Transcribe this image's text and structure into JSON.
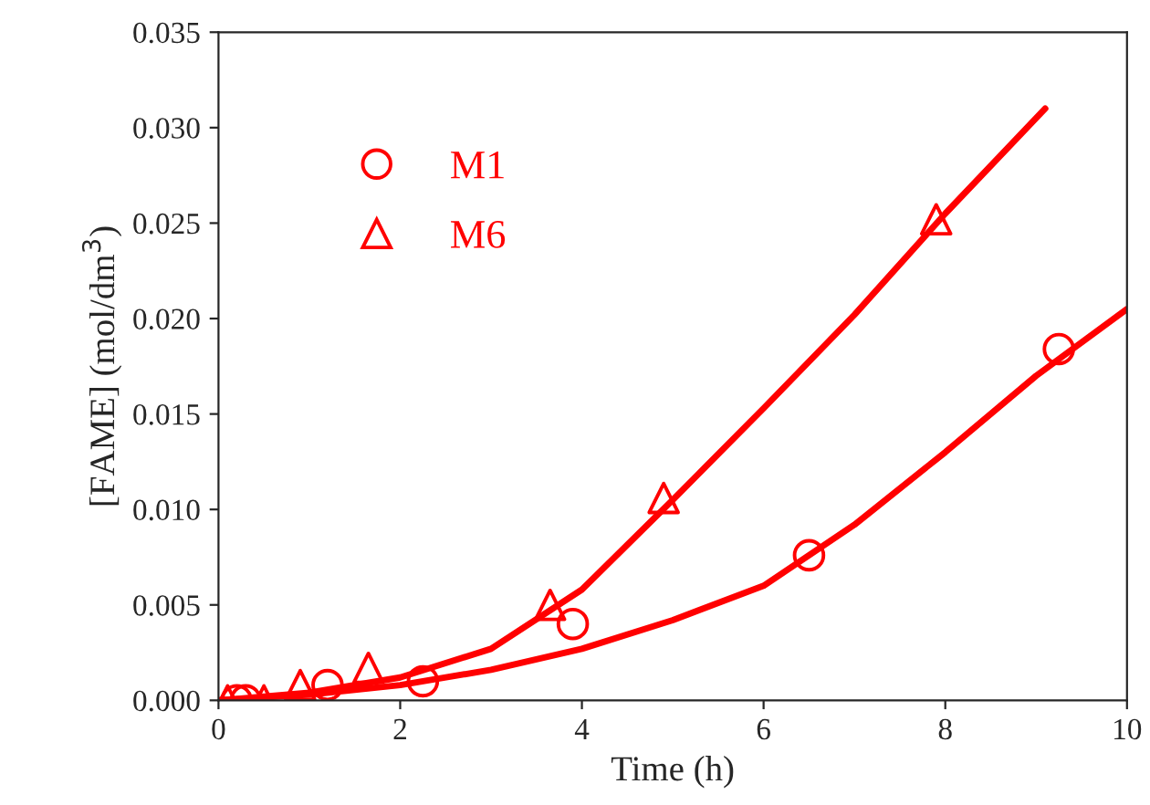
{
  "chart_data": {
    "type": "scatter",
    "xlabel": "Time (h)",
    "ylabel": "[FAME] (mol/dm$^{3}$)",
    "xlim": [
      0,
      10
    ],
    "xticks": [
      0,
      2,
      4,
      6,
      8,
      10
    ],
    "ylim": [
      0,
      0.035
    ],
    "yticks": [
      {
        "value": 0,
        "label": "0.000"
      },
      {
        "value": 0.005,
        "label": "0.005"
      },
      {
        "value": 0.01,
        "label": "0.010"
      },
      {
        "value": 0.015,
        "label": "0.015"
      },
      {
        "value": 0.02,
        "label": "0.020"
      },
      {
        "value": 0.025,
        "label": "0.025"
      },
      {
        "value": 0.03,
        "label": "0.030"
      },
      {
        "value": 0.035,
        "label": "0.035"
      }
    ],
    "grid": false,
    "legend": "top left",
    "series": [
      {
        "name": "M1",
        "marker": "circle",
        "color": "#ff0000",
        "x": [
          0.2,
          0.3,
          1.2,
          2.25,
          3.9,
          6.5,
          9.25
        ],
        "values": [
          0,
          0,
          0.0008,
          0.001,
          0.004,
          0.0076,
          0.0184
        ]
      },
      {
        "name": "M6",
        "marker": "triangle",
        "color": "#ff0000",
        "x": [
          0.1,
          0.5,
          0.9,
          1.65,
          3.65,
          4.9,
          7.9
        ],
        "values": [
          0,
          0,
          0.0008,
          0.0017,
          0.005,
          0.0106,
          0.0252
        ]
      },
      {
        "type": "line",
        "color": "#ff0000",
        "x": [
          0,
          1,
          2,
          3,
          4,
          5,
          6,
          7,
          8,
          9,
          10
        ],
        "values": [
          0,
          0.0003,
          0.0008,
          0.0016,
          0.0027,
          0.0042,
          0.006,
          0.0092,
          0.013,
          0.017,
          0.0205
        ]
      },
      {
        "type": "line",
        "color": "#ff0000",
        "x": [
          0,
          1,
          2,
          3,
          4,
          5,
          6,
          7,
          8,
          9.1
        ],
        "values": [
          0,
          0.0004,
          0.0012,
          0.0027,
          0.0058,
          0.0105,
          0.0153,
          0.0202,
          0.0255,
          0.031
        ]
      }
    ]
  }
}
